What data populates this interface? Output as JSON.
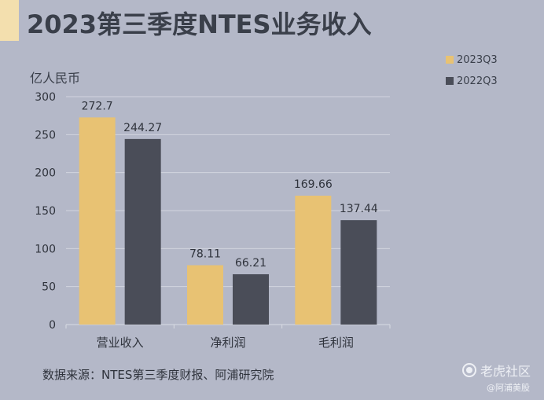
{
  "title": "2023第三季度NTES业务收入",
  "source_note": "数据来源：NTES第三季度财报、阿浦研究院",
  "watermark": {
    "logo_text": "老虎社区",
    "handle": "@阿浦美股"
  },
  "colors": {
    "series_2023": "#e8c273",
    "series_2022": "#4a4d58",
    "accent": "#f3dfae"
  },
  "chart_data": {
    "type": "bar",
    "title": "2023第三季度NTES业务收入",
    "ylabel": "亿人民币",
    "xlabel": "",
    "categories": [
      "营业收入",
      "净利润",
      "毛利润"
    ],
    "series": [
      {
        "name": "2023Q3",
        "values": [
          272.7,
          78.11,
          169.66
        ],
        "labels": [
          "272.7",
          "78.11",
          "169.66"
        ]
      },
      {
        "name": "2022Q3",
        "values": [
          244.27,
          66.21,
          137.44
        ],
        "labels": [
          "244.27",
          "66.21",
          "137.44"
        ]
      }
    ],
    "ylim": [
      0,
      300
    ],
    "yticks": [
      "0",
      "50",
      "100",
      "150",
      "200",
      "250",
      "300"
    ],
    "grid": true,
    "legend_position": "top-right"
  }
}
